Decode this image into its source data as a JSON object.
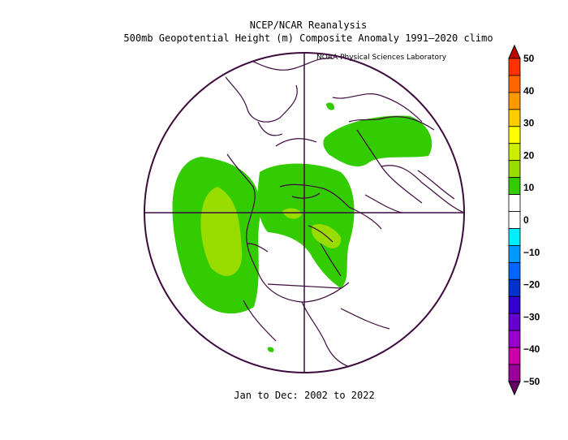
{
  "title": {
    "line1": "NCEP/NCAR Reanalysis",
    "line2": "500mb Geopotential Height (m) Composite Anomaly 1991–2020 climo"
  },
  "credit": "NOAA Physical Sciences Laboratory",
  "footer": "Jan to Dec: 2002 to 2022",
  "colorbar": {
    "levels": [
      {
        "label": "50",
        "color": "#c00000"
      },
      {
        "label": "40",
        "color": "#ff3300"
      },
      {
        "label": "",
        "color": "#ff6600"
      },
      {
        "label": "",
        "color": "#ff9900"
      },
      {
        "label": "30",
        "color": "#ffcc00"
      },
      {
        "label": "",
        "color": "#ffff00"
      },
      {
        "label": "20",
        "color": "#ccee00"
      },
      {
        "label": "",
        "color": "#99dd00"
      },
      {
        "label": "10",
        "color": "#33cc00"
      },
      {
        "label": "",
        "color": "#ffffff"
      },
      {
        "label": "0",
        "color": "#ffffff"
      },
      {
        "label": "",
        "color": "#00eeff"
      },
      {
        "label": "−10",
        "color": "#0099ff"
      },
      {
        "label": "",
        "color": "#0066ff"
      },
      {
        "label": "−20",
        "color": "#0033cc"
      },
      {
        "label": "",
        "color": "#3300cc"
      },
      {
        "label": "−30",
        "color": "#6600cc"
      },
      {
        "label": "",
        "color": "#9900cc"
      },
      {
        "label": "−40",
        "color": "#cc00aa"
      },
      {
        "label": "",
        "color": "#990099"
      },
      {
        "label": "−50",
        "color": "#660066"
      }
    ],
    "tick_labels": [
      "50",
      "40",
      "30",
      "20",
      "10",
      "0",
      "−10",
      "−20",
      "−30",
      "−40",
      "−50"
    ]
  },
  "colors": {
    "coast": "#3d0a3d",
    "anomaly_10_20": "#33cc00",
    "anomaly_20_30": "#99dd00"
  }
}
